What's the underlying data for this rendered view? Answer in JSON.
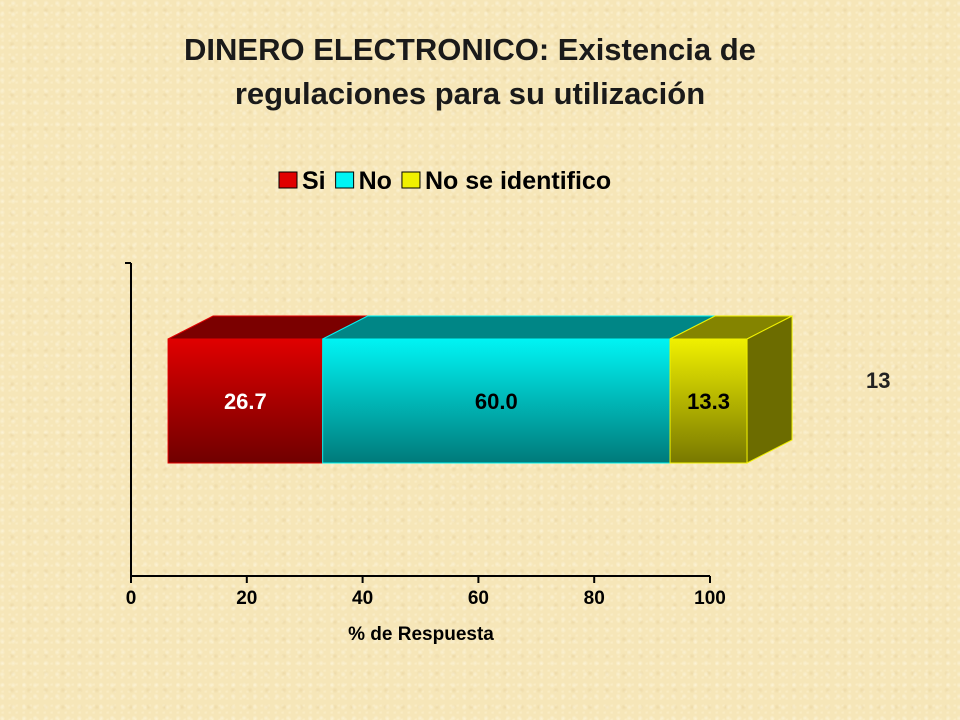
{
  "page": {
    "title_line1": "DINERO ELECTRONICO: Existencia de",
    "title_line2": "regulaciones para su utilización",
    "slide_number": "13"
  },
  "chart_data": {
    "type": "bar",
    "orientation": "horizontal",
    "stacked": true,
    "three_d": true,
    "categories": [
      ""
    ],
    "series": [
      {
        "name": "Si",
        "values": [
          26.7
        ],
        "label": "26.7",
        "color": "#e00000"
      },
      {
        "name": "No",
        "values": [
          60.0
        ],
        "label": "60.0",
        "color": "#00f4f4"
      },
      {
        "name": "No se identifico",
        "values": [
          13.3
        ],
        "label": "13.3",
        "color": "#f0f000"
      }
    ],
    "xlabel": "% de Respuesta",
    "ylabel": "",
    "xlim": [
      0,
      100
    ],
    "xticks": [
      "0",
      "20",
      "40",
      "60",
      "80",
      "100"
    ],
    "legend_position": "top",
    "grid": false
  }
}
